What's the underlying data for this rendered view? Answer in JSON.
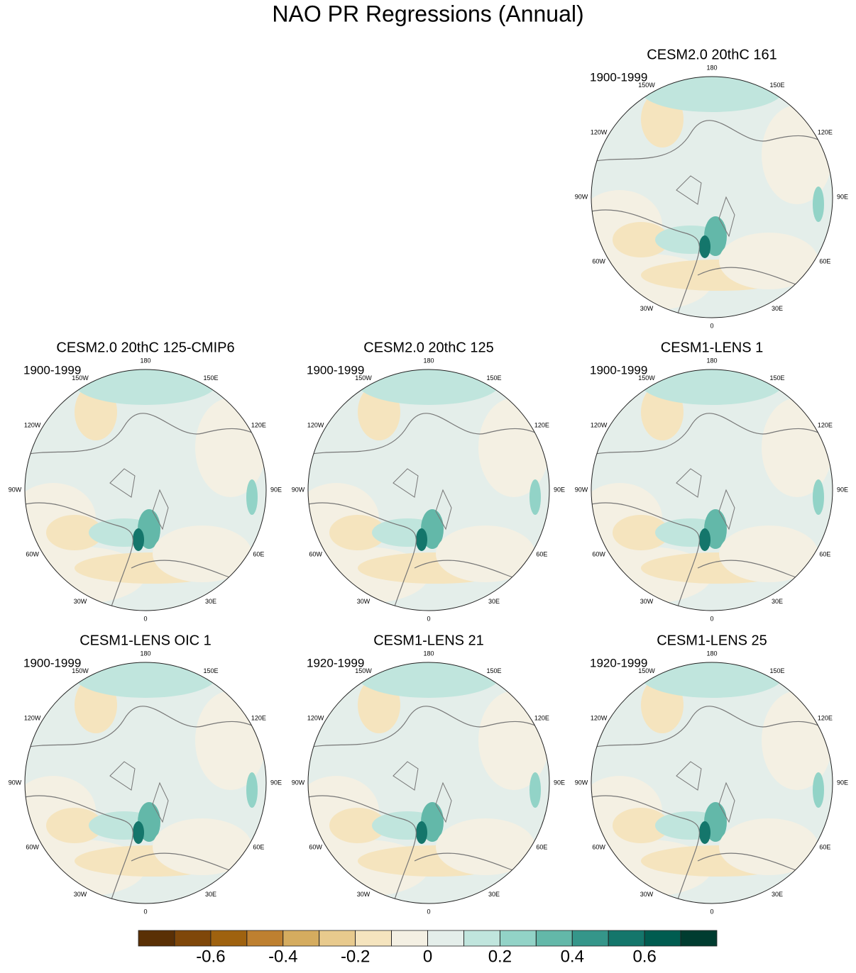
{
  "title": "NAO PR Regressions (Annual)",
  "longitude_labels": [
    "0",
    "30E",
    "60E",
    "90E",
    "120E",
    "150E",
    "180",
    "150W",
    "120W",
    "90W",
    "60W",
    "30W"
  ],
  "panels": [
    {
      "title": "CESM2.0 20thC 161",
      "period": "1900-1999"
    },
    {
      "title": "CESM2.0 20thC 125-CMIP6",
      "period": "1900-1999"
    },
    {
      "title": "CESM2.0 20thC 125",
      "period": "1900-1999"
    },
    {
      "title": "CESM1-LENS 1",
      "period": "1900-1999"
    },
    {
      "title": "CESM1-LENS OIC 1",
      "period": "1900-1999"
    },
    {
      "title": "CESM1-LENS 21",
      "period": "1920-1999"
    },
    {
      "title": "CESM1-LENS 25",
      "period": "1920-1999"
    }
  ],
  "colorbar": {
    "colors": [
      "#5a3005",
      "#7f4709",
      "#9f620f",
      "#be8030",
      "#d5ac5f",
      "#e8ca8d",
      "#f5e4be",
      "#f4f0e3",
      "#e4eeea",
      "#c0e5dd",
      "#92d3c7",
      "#63b8a9",
      "#35968a",
      "#14766b",
      "#005c50",
      "#003c30"
    ],
    "levels": [
      -0.7,
      -0.6,
      -0.5,
      -0.4,
      -0.3,
      -0.2,
      -0.1,
      0,
      0.1,
      0.2,
      0.3,
      0.4,
      0.5,
      0.6,
      0.7
    ],
    "ticks": [
      -0.6,
      -0.4,
      -0.2,
      0,
      0.2,
      0.4,
      0.6
    ]
  }
}
